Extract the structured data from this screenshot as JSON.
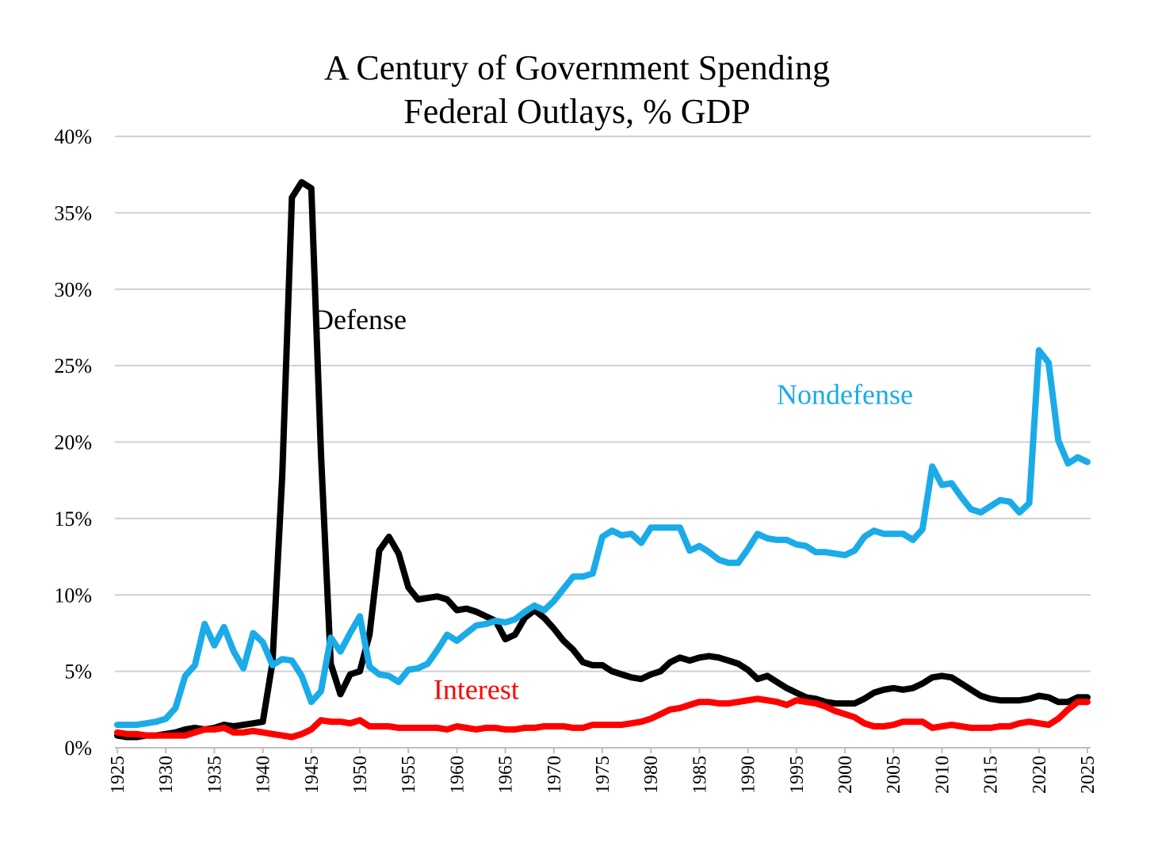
{
  "chart_data": {
    "type": "line",
    "title": "A Century of Government Spending",
    "subtitle": "Federal Outlays, % GDP",
    "xlabel": "",
    "ylabel": "",
    "xlim": [
      1925,
      2025
    ],
    "ylim": [
      0,
      40
    ],
    "grid": true,
    "legend": "inline labels",
    "y_ticks": [
      "0%",
      "5%",
      "10%",
      "15%",
      "20%",
      "25%",
      "30%",
      "35%",
      "40%"
    ],
    "x_ticks": [
      "1925",
      "1930",
      "1935",
      "1940",
      "1945",
      "1950",
      "1955",
      "1960",
      "1965",
      "1970",
      "1975",
      "1980",
      "1985",
      "1990",
      "1995",
      "2000",
      "2005",
      "2010",
      "2015",
      "2020",
      "2025"
    ],
    "x_start": 1925,
    "series": [
      {
        "name": "Defense",
        "color": "#000000",
        "values": [
          0.8,
          0.7,
          0.7,
          0.8,
          0.8,
          0.9,
          1.0,
          1.2,
          1.3,
          1.2,
          1.3,
          1.5,
          1.4,
          1.5,
          1.6,
          1.7,
          5.6,
          17.8,
          36.0,
          37.0,
          36.6,
          19.2,
          5.5,
          3.5,
          4.8,
          5.0,
          7.4,
          12.9,
          13.8,
          12.7,
          10.5,
          9.7,
          9.8,
          9.9,
          9.7,
          9.0,
          9.1,
          8.9,
          8.6,
          8.3,
          7.1,
          7.4,
          8.5,
          9.0,
          8.5,
          7.8,
          7.0,
          6.4,
          5.6,
          5.4,
          5.4,
          5.0,
          4.8,
          4.6,
          4.5,
          4.8,
          5.0,
          5.6,
          5.9,
          5.7,
          5.9,
          6.0,
          5.9,
          5.7,
          5.5,
          5.1,
          4.5,
          4.7,
          4.3,
          3.9,
          3.6,
          3.3,
          3.2,
          3.0,
          2.9,
          2.9,
          2.9,
          3.2,
          3.6,
          3.8,
          3.9,
          3.8,
          3.9,
          4.2,
          4.6,
          4.7,
          4.6,
          4.2,
          3.8,
          3.4,
          3.2,
          3.1,
          3.1,
          3.1,
          3.2,
          3.4,
          3.3,
          3.0,
          3.0,
          3.3,
          3.3
        ]
      },
      {
        "name": "Nondefense",
        "color": "#1AABE8",
        "values": [
          1.5,
          1.5,
          1.5,
          1.6,
          1.7,
          1.9,
          2.6,
          4.7,
          5.4,
          8.1,
          6.7,
          7.9,
          6.3,
          5.2,
          7.5,
          6.9,
          5.4,
          5.8,
          5.7,
          4.7,
          3.0,
          3.7,
          7.2,
          6.3,
          7.5,
          8.6,
          5.3,
          4.8,
          4.7,
          4.3,
          5.1,
          5.2,
          5.5,
          6.4,
          7.4,
          7.0,
          7.5,
          8.0,
          8.1,
          8.3,
          8.2,
          8.4,
          8.9,
          9.3,
          9.0,
          9.6,
          10.4,
          11.2,
          11.2,
          11.4,
          13.8,
          14.2,
          13.9,
          14.0,
          13.4,
          14.4,
          14.4,
          14.4,
          14.4,
          12.9,
          13.2,
          12.8,
          12.3,
          12.1,
          12.1,
          13.0,
          14.0,
          13.7,
          13.6,
          13.6,
          13.3,
          13.2,
          12.8,
          12.8,
          12.7,
          12.6,
          12.9,
          13.8,
          14.2,
          14.0,
          14.0,
          14.0,
          13.6,
          14.3,
          18.4,
          17.2,
          17.3,
          16.4,
          15.6,
          15.4,
          15.8,
          16.2,
          16.1,
          15.4,
          16.0,
          26.0,
          25.2,
          20.1,
          18.6,
          19.0,
          18.7
        ]
      },
      {
        "name": "Interest",
        "color": "#FF0000",
        "values": [
          1.0,
          0.9,
          0.9,
          0.8,
          0.8,
          0.8,
          0.8,
          0.8,
          1.0,
          1.2,
          1.2,
          1.3,
          1.0,
          1.0,
          1.1,
          1.0,
          0.9,
          0.8,
          0.7,
          0.9,
          1.2,
          1.8,
          1.7,
          1.7,
          1.6,
          1.8,
          1.4,
          1.4,
          1.4,
          1.3,
          1.3,
          1.3,
          1.3,
          1.3,
          1.2,
          1.4,
          1.3,
          1.2,
          1.3,
          1.3,
          1.2,
          1.2,
          1.3,
          1.3,
          1.4,
          1.4,
          1.4,
          1.3,
          1.3,
          1.5,
          1.5,
          1.5,
          1.5,
          1.6,
          1.7,
          1.9,
          2.2,
          2.5,
          2.6,
          2.8,
          3.0,
          3.0,
          2.9,
          2.9,
          3.0,
          3.1,
          3.2,
          3.1,
          3.0,
          2.8,
          3.1,
          3.0,
          2.9,
          2.7,
          2.4,
          2.2,
          2.0,
          1.6,
          1.4,
          1.4,
          1.5,
          1.7,
          1.7,
          1.7,
          1.3,
          1.4,
          1.5,
          1.4,
          1.3,
          1.3,
          1.3,
          1.4,
          1.4,
          1.6,
          1.7,
          1.6,
          1.5,
          1.9,
          2.5,
          3.0,
          3.0
        ]
      }
    ],
    "annotations": [
      {
        "text": "Defense",
        "series": "Defense",
        "year": 1950,
        "value": 27.4
      },
      {
        "text": "Nondefense",
        "series": "Nondefense",
        "year": 2000,
        "value": 22.5
      },
      {
        "text": "Interest",
        "series": "Interest",
        "year": 1962,
        "value": 3.2
      }
    ]
  }
}
